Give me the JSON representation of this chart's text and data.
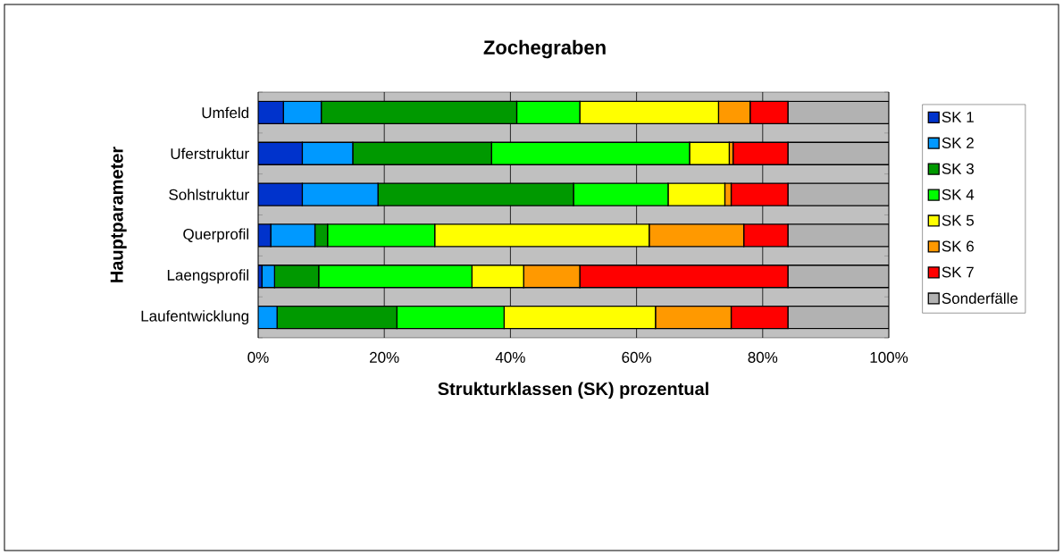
{
  "chart_data": {
    "type": "bar",
    "orientation": "horizontal",
    "stacked": true,
    "title": "Zochegraben",
    "xlabel": "Strukturklassen (SK) prozentual",
    "ylabel": "Hauptparameter",
    "categories": [
      "Umfeld",
      "Uferstruktur",
      "Sohlstruktur",
      "Querprofil",
      "Laengsprofil",
      "Laufentwicklung"
    ],
    "series": [
      {
        "name": "SK 1",
        "color": "#0033cc",
        "values": [
          4,
          7,
          7,
          2,
          0.6,
          0
        ]
      },
      {
        "name": "SK 2",
        "color": "#0099ff",
        "values": [
          6,
          8,
          12,
          7,
          2,
          3
        ]
      },
      {
        "name": "SK 3",
        "color": "#009900",
        "values": [
          31,
          22,
          31,
          2,
          7,
          19
        ]
      },
      {
        "name": "SK 4",
        "color": "#00ff00",
        "values": [
          10,
          31.4,
          15,
          17,
          24.3,
          17
        ]
      },
      {
        "name": "SK 5",
        "color": "#ffff00",
        "values": [
          22,
          6.3,
          9,
          34,
          8.2,
          24
        ]
      },
      {
        "name": "SK 6",
        "color": "#ff9900",
        "values": [
          5,
          0.6,
          1,
          15,
          8.9,
          12
        ]
      },
      {
        "name": "SK 7",
        "color": "#ff0000",
        "values": [
          6,
          8.7,
          9,
          7,
          33,
          9
        ]
      },
      {
        "name": "Sonderfälle",
        "color": "#b2b2b2",
        "values": [
          16,
          16,
          16,
          16,
          16,
          16
        ]
      }
    ],
    "xlim": [
      0,
      100
    ],
    "xticks": [
      {
        "value": 0,
        "label": "0%"
      },
      {
        "value": 20,
        "label": "20%"
      },
      {
        "value": 40,
        "label": "40%"
      },
      {
        "value": 60,
        "label": "60%"
      },
      {
        "value": 80,
        "label": "80%"
      },
      {
        "value": 100,
        "label": "100%"
      }
    ],
    "grid": "x",
    "legend": "right"
  }
}
